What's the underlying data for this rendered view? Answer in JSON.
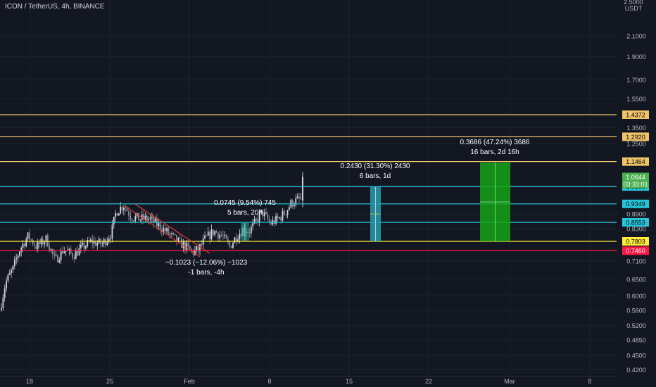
{
  "header": {
    "title": "ICON / TetherUS, 4h, BINANCE"
  },
  "axis": {
    "unit_label": "USDT",
    "top_partial_label": "2.5000",
    "price_ticks": [
      "2.1000",
      "1.9000",
      "1.7000",
      "1.5500",
      "1.3500",
      "1.2500",
      "0.8900",
      "0.8300",
      "0.7100",
      "0.6500",
      "0.6000",
      "0.5600",
      "0.5200",
      "0.4850",
      "0.4500",
      "0.4200"
    ],
    "date_ticks": [
      "18",
      "25",
      "Feb",
      "8",
      "15",
      "22",
      "Mar",
      "8"
    ]
  },
  "chart_data": {
    "type": "candlestick",
    "title": "ICON / TetherUS, 4h, BINANCE",
    "y_scale": "log",
    "ylim": [
      0.4,
      2.6
    ],
    "x_ticks": [
      "18",
      "25",
      "Feb",
      "8",
      "15",
      "22",
      "Mar",
      "8"
    ],
    "price_lines": [
      {
        "value": "1.4372",
        "color": "#f0c56a"
      },
      {
        "value": "1.2920",
        "color": "#f0c56a"
      },
      {
        "value": "1.1464",
        "color": "#f0c56a"
      },
      {
        "value": "1.0165",
        "color": "#26c6da"
      },
      {
        "value": "0.9349",
        "color": "#26c6da"
      },
      {
        "value": "0.8553",
        "color": "#26c6da"
      },
      {
        "value": "0.7803",
        "color": "#ffeb3b"
      },
      {
        "value": "0.7460",
        "color": "#ff1744"
      }
    ],
    "current_price": {
      "value": "1.0644",
      "countdown": "03:33:01",
      "color": "#4caf50"
    },
    "measurements": [
      {
        "line1": "0.3686 (47.24%) 3686",
        "line2": "16 bars, 2d 16h",
        "color": "#16a316"
      },
      {
        "line1": "0.2430 (31.30%) 2430",
        "line2": "6 bars, 1d",
        "color": "#2a9bb0"
      },
      {
        "line1": "0.0745 (9.54%) 745",
        "line2": "5 bars, 20h",
        "color": "#26a69a"
      },
      {
        "line1": "−0.1023 (−12.06%) −1023",
        "line2": "-1 bars, -4h",
        "color": "#e53935"
      }
    ]
  }
}
